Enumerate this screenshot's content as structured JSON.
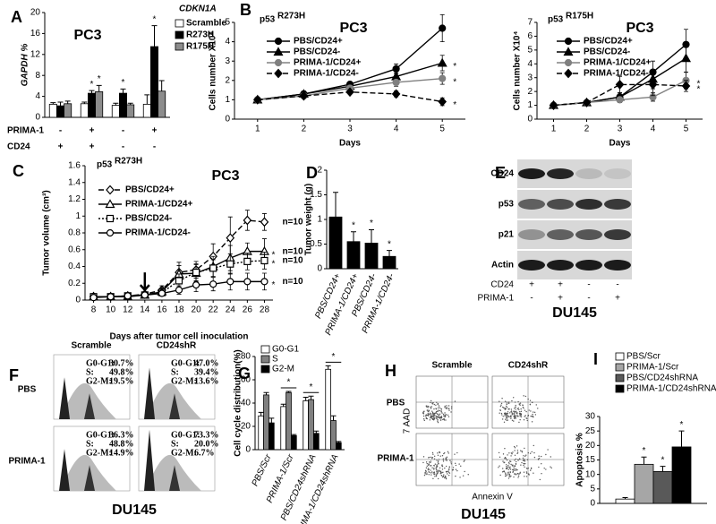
{
  "chart_data": [
    {
      "type": "bar",
      "panel": "A",
      "title": "PC3",
      "legend_title": "CDKN1A",
      "ylabel": "GAPDH %",
      "categories": [
        null,
        null,
        null,
        null
      ],
      "conditions": [
        {
          "name": "PRIMA-1",
          "values": [
            "-",
            "+",
            "-",
            "+"
          ]
        },
        {
          "name": "CD24",
          "values": [
            "+",
            "+",
            "-",
            "-"
          ]
        }
      ],
      "series": [
        {
          "name": "Scramble",
          "color": "#ffffff",
          "values": [
            2.5,
            2.6,
            2.3,
            2.5
          ],
          "errors": [
            0.3,
            0.3,
            0.4,
            1.8
          ]
        },
        {
          "name": "R273H",
          "color": "#000000",
          "values": [
            2.2,
            4.6,
            4.6,
            13.5
          ],
          "errors": [
            0.7,
            0.5,
            0.8,
            4
          ],
          "significance": [
            null,
            "*",
            "*",
            "*"
          ]
        },
        {
          "name": "R175H",
          "color": "#8c8c8c",
          "values": [
            2.6,
            4.9,
            2.4,
            5.0
          ],
          "errors": [
            0.5,
            1.2,
            0.3,
            2
          ],
          "significance": [
            null,
            "*",
            null,
            null
          ]
        }
      ],
      "ylim": [
        0,
        20
      ],
      "yticks": [
        0,
        4,
        8,
        12,
        16,
        20
      ]
    },
    {
      "type": "line",
      "panel": "B",
      "title": "PC3",
      "label_main": "p53",
      "label_sup": "R273H",
      "ylabel": "Cells number X10⁴",
      "xlabel": "Days",
      "x": [
        1,
        2,
        3,
        4,
        5
      ],
      "xlim": [
        0.5,
        5.5
      ],
      "xticks": [
        1,
        2,
        3,
        4,
        5
      ],
      "ylim": [
        0,
        5
      ],
      "yticks": [
        0,
        1,
        2,
        3,
        4,
        5
      ],
      "series": [
        {
          "name": "PBS/CD24+",
          "color": "#000000",
          "marker": "circle",
          "marker_fill": "#000000",
          "line_style": "solid",
          "values": [
            1.0,
            1.3,
            1.8,
            2.6,
            4.7
          ],
          "errors": [
            0.05,
            0.15,
            0.1,
            0.25,
            0.7
          ]
        },
        {
          "name": "PBS/CD24-",
          "color": "#000000",
          "marker": "triangle",
          "marker_fill": "#000000",
          "line_style": "solid",
          "values": [
            1.0,
            1.3,
            1.7,
            2.2,
            2.9
          ],
          "errors": [
            0.05,
            0.1,
            0.1,
            0.2,
            0.4
          ],
          "significance": "*"
        },
        {
          "name": "PRIMA-1/CD24+",
          "color": "#808080",
          "marker": "circle",
          "marker_fill": "#808080",
          "line_style": "solid",
          "values": [
            1.0,
            1.2,
            1.6,
            1.9,
            2.1
          ],
          "errors": [
            0.05,
            0.1,
            0.1,
            0.2,
            0.3
          ],
          "significance": "*"
        },
        {
          "name": "PRIMA-1/CD24-",
          "color": "#000000",
          "marker": "diamond",
          "marker_fill": "#000000",
          "line_style": "dashed",
          "values": [
            1.0,
            1.2,
            1.4,
            1.3,
            0.9
          ],
          "errors": [
            0.05,
            0.1,
            0.1,
            0.15,
            0.2
          ],
          "significance": "*"
        }
      ]
    },
    {
      "type": "line",
      "title": "PC3",
      "label_main": "p53",
      "label_sup": "R175H",
      "ylabel": "Cells number X10⁴",
      "xlabel": "Days",
      "x": [
        1,
        2,
        3,
        4,
        5
      ],
      "xlim": [
        0.5,
        5.5
      ],
      "xticks": [
        1,
        2,
        3,
        4,
        5
      ],
      "ylim": [
        0,
        7
      ],
      "yticks": [
        0,
        1,
        2,
        3,
        4,
        5,
        6,
        7
      ],
      "series": [
        {
          "name": "PBS/CD24+",
          "color": "#000000",
          "marker": "circle",
          "marker_fill": "#000000",
          "line_style": "solid",
          "values": [
            1,
            1.2,
            1.6,
            3.4,
            5.4
          ],
          "errors": [
            0.05,
            0.1,
            0.3,
            0.8,
            1.1
          ]
        },
        {
          "name": "PBS/CD24-",
          "color": "#000000",
          "marker": "triangle",
          "marker_fill": "#000000",
          "line_style": "solid",
          "values": [
            1,
            1.2,
            1.6,
            2.9,
            4.4
          ],
          "errors": [
            0.05,
            0.1,
            0.3,
            0.7,
            1.0
          ]
        },
        {
          "name": "PRIMA-1/CD24+",
          "color": "#808080",
          "marker": "circle",
          "marker_fill": "#808080",
          "line_style": "solid",
          "values": [
            1,
            1.2,
            1.4,
            1.6,
            2.8
          ],
          "errors": [
            0.05,
            0.1,
            0.2,
            0.3,
            0.6
          ],
          "significance": "*"
        },
        {
          "name": "PRIMA-1/CD24-",
          "color": "#000000",
          "marker": "diamond",
          "marker_fill": "#000000",
          "line_style": "dashed",
          "values": [
            1,
            1.2,
            2.5,
            2.5,
            2.4
          ],
          "errors": [
            0.05,
            0.1,
            0.6,
            0.8,
            0.4
          ],
          "significance": "*"
        }
      ]
    },
    {
      "type": "line",
      "panel": "C",
      "title": "PC3",
      "label_main": "p53",
      "label_sup": "R273H",
      "ylabel": "Tumor volume (cm³)",
      "xlabel": "Days after tumor cell inoculation",
      "x": [
        8,
        10,
        12,
        14,
        16,
        18,
        20,
        22,
        24,
        26,
        28
      ],
      "xlim": [
        7,
        29
      ],
      "xticks": [
        8,
        10,
        12,
        14,
        16,
        18,
        20,
        22,
        24,
        26,
        28
      ],
      "ylim": [
        0,
        1.6
      ],
      "yticks": [
        0,
        0.2,
        0.4,
        0.6,
        0.8,
        1,
        1.2,
        1.4,
        1.6
      ],
      "series": [
        {
          "name": "PBS/CD24+",
          "color": "#000000",
          "marker": "diamond",
          "marker_fill": "#ffffff",
          "line_style": "dashed",
          "values": [
            0.04,
            0.04,
            0.05,
            0.07,
            0.12,
            0.33,
            0.36,
            0.52,
            0.74,
            0.95,
            0.93
          ],
          "errors": [
            0.01,
            0.01,
            0.01,
            0.02,
            0.05,
            0.12,
            0.1,
            0.15,
            0.25,
            0.12,
            0.1
          ],
          "end_label": "n=10"
        },
        {
          "name": "PRIMA-1/CD24+",
          "color": "#000000",
          "marker": "triangle",
          "marker_fill": "#ffffff",
          "line_style": "solid",
          "values": [
            0.04,
            0.04,
            0.04,
            0.06,
            0.1,
            0.31,
            0.32,
            0.4,
            0.5,
            0.58,
            0.58
          ],
          "errors": [
            0.01,
            0.01,
            0.01,
            0.02,
            0.04,
            0.1,
            0.1,
            0.12,
            0.15,
            0.1,
            0.15
          ],
          "end_label": "n=10",
          "significance": "*"
        },
        {
          "name": "PBS/CD24-",
          "color": "#000000",
          "marker": "square",
          "marker_fill": "#ffffff",
          "line_style": "dotted",
          "values": [
            0.04,
            0.04,
            0.05,
            0.06,
            0.09,
            0.23,
            0.33,
            0.38,
            0.43,
            0.46,
            0.47
          ],
          "errors": [
            0.01,
            0.01,
            0.01,
            0.02,
            0.04,
            0.08,
            0.1,
            0.1,
            0.12,
            0.1,
            0.1
          ],
          "end_label": "n=10",
          "significance": "*"
        },
        {
          "name": "PRIMA-1/CD24-",
          "color": "#000000",
          "marker": "circle",
          "marker_fill": "#ffffff",
          "line_style": "solid",
          "values": [
            0.03,
            0.04,
            0.05,
            0.06,
            0.08,
            0.12,
            0.18,
            0.19,
            0.22,
            0.22,
            0.22
          ],
          "errors": [
            0.01,
            0.01,
            0.01,
            0.02,
            0.03,
            0.05,
            0.08,
            0.08,
            0.1,
            0.1,
            0.1
          ],
          "end_label": "n=10",
          "significance": "*"
        }
      ]
    },
    {
      "type": "bar",
      "panel": "D",
      "ylabel": "Tumor weight (g)",
      "categories": [
        "PBS/CD24+",
        "PRIMA-1/CD24+",
        "PBS/CD24-",
        "PRIMA-1/CD24-"
      ],
      "series": [
        {
          "color": "#000000",
          "values": [
            1.05,
            0.55,
            0.52,
            0.25
          ],
          "errors": [
            0.5,
            0.2,
            0.27,
            0.12
          ],
          "significance": [
            null,
            "*",
            "*",
            "*"
          ]
        }
      ],
      "ylim": [
        0,
        2
      ],
      "yticks": [
        0,
        0.5,
        1,
        1.5,
        2
      ]
    },
    {
      "type": "bar",
      "panel": "G",
      "ylabel": "Cell cycle distribution(%)",
      "categories": [
        "PBS/Scr",
        "PRIMA-1/Scr",
        "PBS/CD24shRNA",
        "PRIMA-1/CD24shRNA"
      ],
      "group_significance": [
        null,
        "*",
        "*",
        "*"
      ],
      "series": [
        {
          "name": "G0-G1",
          "color": "#ffffff",
          "values": [
            29,
            37,
            42,
            69
          ],
          "errors": [
            3,
            2,
            3,
            3
          ]
        },
        {
          "name": "S",
          "color": "#808080",
          "values": [
            47,
            49,
            43,
            25
          ],
          "errors": [
            2,
            1,
            3,
            4
          ]
        },
        {
          "name": "G2-M",
          "color": "#000000",
          "values": [
            23,
            12,
            14,
            6
          ],
          "errors": [
            4,
            1,
            2,
            1
          ]
        }
      ],
      "ylim": [
        0,
        80
      ],
      "yticks": [
        0,
        20,
        40,
        60,
        80
      ]
    },
    {
      "type": "bar",
      "panel": "I",
      "ylabel": "Apoptosis %",
      "categories": [
        null
      ],
      "series": [
        {
          "name": "PBS/Scr",
          "color": "#ffffff",
          "values": [
            1.5
          ],
          "errors": [
            0.5
          ]
        },
        {
          "name": "PRIMA-1/Scr",
          "color": "#a6a6a6",
          "values": [
            13.5
          ],
          "errors": [
            2.5
          ],
          "significance": [
            "*"
          ]
        },
        {
          "name": "PBS/CD24shRNA",
          "color": "#595959",
          "values": [
            11
          ],
          "errors": [
            1.8
          ],
          "significance": [
            "*"
          ]
        },
        {
          "name": "PRIMA-1/CD24shRNA",
          "color": "#000000",
          "values": [
            19.5
          ],
          "errors": [
            5.5
          ],
          "significance": [
            "*"
          ]
        }
      ],
      "ylim": [
        0,
        30
      ],
      "yticks": [
        0,
        5,
        10,
        15,
        20,
        25,
        30
      ]
    }
  ],
  "blot": {
    "panel": "E",
    "rows": [
      "CD24",
      "p53",
      "p21",
      "Actin"
    ],
    "conditions": [
      {
        "name": "CD24",
        "values": [
          "+",
          "+",
          "-",
          "-"
        ]
      },
      {
        "name": "PRIMA-1",
        "values": [
          "-",
          "+",
          "-",
          "+"
        ]
      }
    ],
    "cell_line": "DU145"
  },
  "histograms": {
    "panel": "F",
    "columns": [
      "Scramble",
      "CD24shR"
    ],
    "rows": [
      "PBS",
      "PRIMA-1"
    ],
    "stat_labels": [
      "G0-G1:",
      "S:",
      "G2-M:"
    ],
    "stats": [
      [
        [
          "30.7%",
          "49.8%",
          "19.5%"
        ],
        [
          "47.0%",
          "39.4%",
          "13.6%"
        ]
      ],
      [
        [
          "36.3%",
          "48.8%",
          "14.9%"
        ],
        [
          "73.3%",
          "20.0%",
          "6.7%"
        ]
      ]
    ],
    "cell_line": "DU145"
  },
  "flow": {
    "panel": "H",
    "columns": [
      "Scramble",
      "CD24shR"
    ],
    "rows": [
      "PBS",
      "PRIMA-1"
    ],
    "y_label": "7 AAD",
    "x_label": "Annexin V",
    "cell_line": "DU145"
  }
}
